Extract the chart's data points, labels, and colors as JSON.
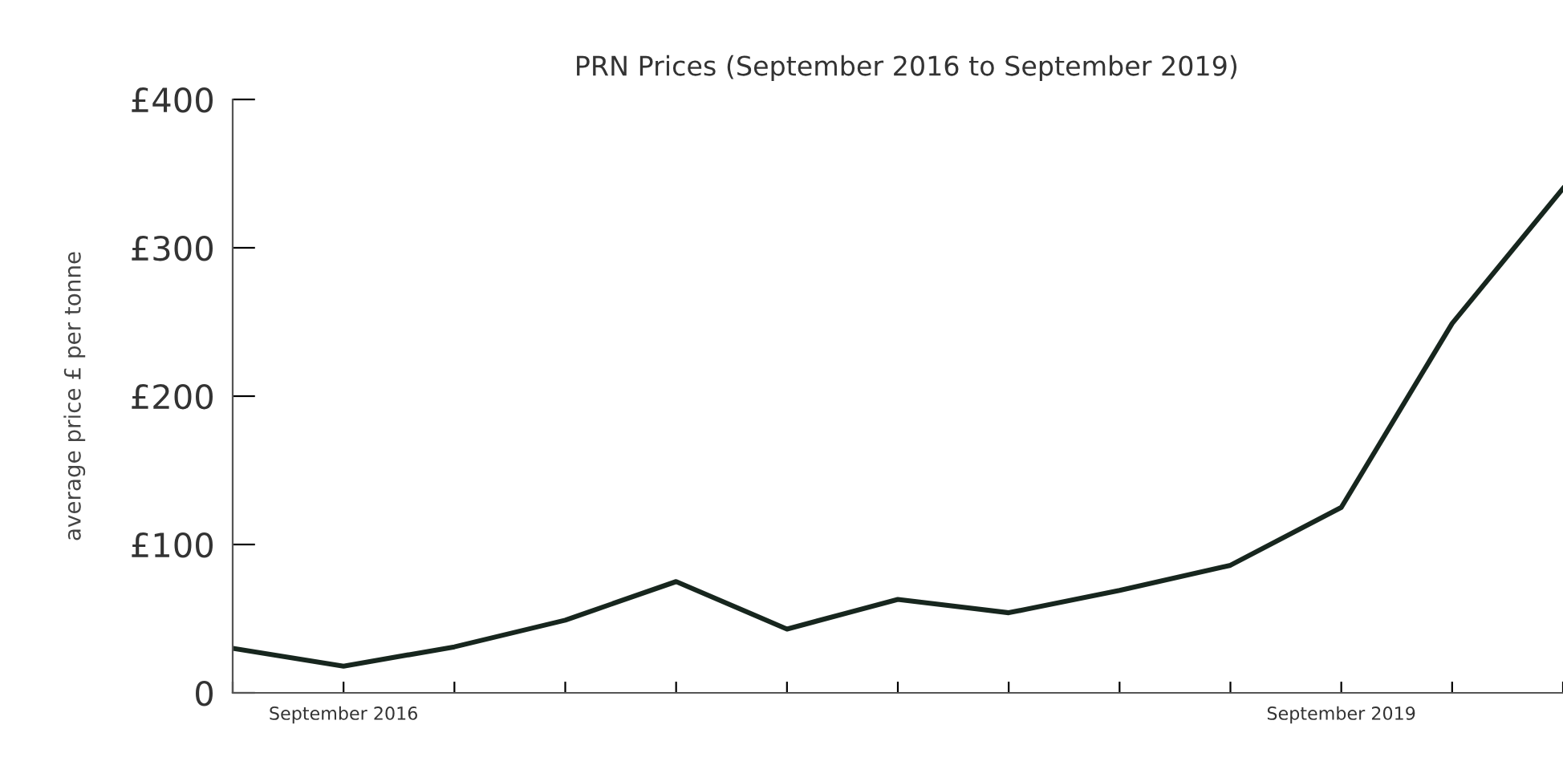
{
  "chart_data": {
    "type": "line",
    "title": "PRN Prices (September 2016 to September 2019)",
    "ylabel": "average price £ per tonne",
    "categories": [
      null,
      "September 2016",
      null,
      null,
      null,
      null,
      null,
      null,
      null,
      null,
      "September 2019",
      null,
      null
    ],
    "series": [
      {
        "color": "#17261e",
        "values": [
          30,
          18,
          31,
          49,
          75,
          43,
          63,
          54,
          69,
          86,
          125,
          249,
          340
        ]
      }
    ],
    "ylim": [
      0,
      400
    ],
    "yticks": [
      0,
      {
        "value": 100,
        "label": "£100"
      },
      {
        "value": 200,
        "label": "£200"
      },
      {
        "value": 300,
        "label": "£300"
      },
      {
        "value": 400,
        "label": "£400"
      }
    ],
    "grid": false,
    "legend": false,
    "marker": "none",
    "line_style": "solid"
  }
}
